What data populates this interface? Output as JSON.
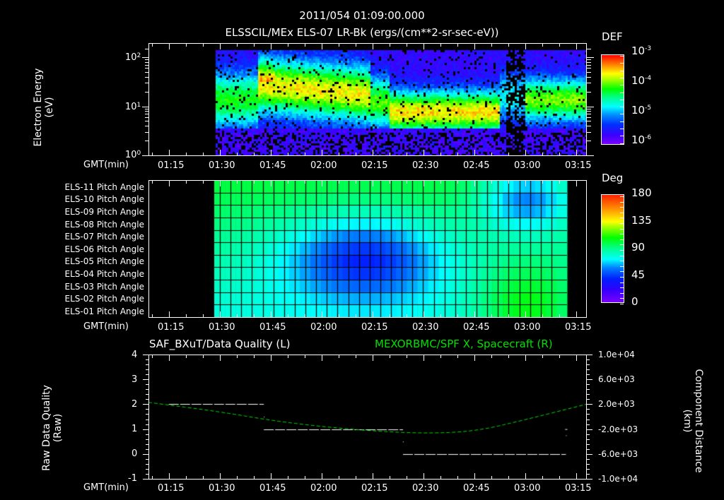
{
  "header": {
    "datetime": "2011/054 01:09:00.000",
    "subtitle": "ELSSCIL/MEx ELS-07 LR-Bk  (ergs/(cm**2-sr-sec-eV))"
  },
  "time_axis": {
    "label": "GMT(min)",
    "ticks": [
      "01:15",
      "01:30",
      "01:45",
      "02:00",
      "02:15",
      "02:30",
      "02:45",
      "03:00",
      "03:15"
    ]
  },
  "panel1": {
    "ylabel_line1": "Electron Energy",
    "ylabel_line2": "(eV)",
    "yticks": [
      {
        "base": "10",
        "exp": "2"
      },
      {
        "base": "10",
        "exp": "1"
      },
      {
        "base": "10",
        "exp": "0"
      }
    ],
    "colorbar": {
      "title": "DEF",
      "ticks": [
        {
          "base": "10",
          "exp": "-3"
        },
        {
          "base": "10",
          "exp": "-4"
        },
        {
          "base": "10",
          "exp": "-5"
        },
        {
          "base": "10",
          "exp": "-6"
        }
      ]
    }
  },
  "panel2": {
    "row_labels": [
      "ELS-11 Pitch Angle",
      "ELS-10 Pitch Angle",
      "ELS-09 Pitch Angle",
      "ELS-08 Pitch Angle",
      "ELS-07 Pitch Angle",
      "ELS-06 Pitch Angle",
      "ELS-05 Pitch Angle",
      "ELS-04 Pitch Angle",
      "ELS-03 Pitch Angle",
      "ELS-02 Pitch Angle",
      "ELS-01 Pitch Angle"
    ],
    "colorbar": {
      "title": "Deg",
      "ticks": [
        "180",
        "135",
        "90",
        "45",
        "0"
      ]
    }
  },
  "panel3": {
    "title_left": "SAF_BXuT/Data Quality (L)",
    "title_right": "MEXORBMC/SPF X, Spacecraft (R)",
    "title_right_color": "#00e000",
    "ylabel_left_line1": "Raw Data Quality",
    "ylabel_left_line2": "(Raw)",
    "yticks_left": [
      "4",
      "3",
      "2",
      "1",
      "0",
      "-1"
    ],
    "ylabel_right_line1": "Component Distance",
    "ylabel_right_line2": "(km)",
    "yticks_right": [
      "1.0e+04",
      "6.0e+03",
      "2.0e+03",
      "-2.0e+03",
      "-6.0e+03",
      "-1.0e+04"
    ]
  },
  "chart_data": [
    {
      "type": "heatmap",
      "title": "ELSSCIL/MEx ELS-07 LR-Bk (ergs/(cm**2-sr-sec-eV))",
      "xlabel": "GMT(min)",
      "ylabel": "Electron Energy (eV)",
      "yscale": "log",
      "ylim": [
        1,
        180
      ],
      "xlim": [
        "01:09",
        "03:18"
      ],
      "data_start": "01:29",
      "colorbar": {
        "label": "DEF",
        "scale": "log",
        "range": [
          1e-06,
          0.001
        ]
      },
      "features": [
        {
          "time": [
            "01:29",
            "01:41"
          ],
          "peak_energy_eV": 15,
          "level": "1e-5"
        },
        {
          "time": [
            "01:41",
            "02:13"
          ],
          "peak_energy_eV": 40,
          "level": "1e-4"
        },
        {
          "time": [
            "02:20",
            "02:52"
          ],
          "peak_energy_eV": 8,
          "level": "1e-4"
        },
        {
          "time": [
            "02:57",
            "03:03"
          ],
          "level": "data gaps/ low"
        },
        {
          "time": [
            "03:07",
            "03:18"
          ],
          "peak_energy_eV": 15,
          "level": "5e-5"
        }
      ]
    },
    {
      "type": "heatmap",
      "title": "Pitch Angle",
      "xlabel": "GMT(min)",
      "categories": [
        "ELS-11",
        "ELS-10",
        "ELS-09",
        "ELS-08",
        "ELS-07",
        "ELS-06",
        "ELS-05",
        "ELS-04",
        "ELS-03",
        "ELS-02",
        "ELS-01"
      ],
      "colorbar": {
        "label": "Deg",
        "range": [
          0,
          180
        ]
      },
      "xlim": [
        "01:09",
        "03:18"
      ],
      "data_range": [
        "01:29",
        "03:13"
      ],
      "n_time_bins": 33
    },
    {
      "type": "line",
      "title": "SAF_BXuT/Data Quality (L) ; MEXORBMC/SPF X, Spacecraft (R)",
      "xlabel": "GMT(min)",
      "ylabel": "Raw Data Quality (Raw)",
      "ylabel_right": "Component Distance (km)",
      "ylim": [
        -1,
        4
      ],
      "ylim_right": [
        -10000,
        10000
      ],
      "series": [
        {
          "name": "Data Quality",
          "axis": "left",
          "color": "#ffffff",
          "x": [
            "01:15",
            "01:43",
            "01:43",
            "02:24",
            "02:24",
            "03:12"
          ],
          "values": [
            2,
            2,
            1,
            1,
            0,
            0
          ]
        },
        {
          "name": "SPF X Spacecraft",
          "axis": "right",
          "color": "#00e000",
          "x": [
            "01:09",
            "01:30",
            "01:45",
            "02:00",
            "02:15",
            "02:30",
            "02:45",
            "03:00",
            "03:18"
          ],
          "values": [
            2300,
            800,
            -600,
            -1600,
            -2300,
            -2700,
            -2400,
            -500,
            2000
          ]
        }
      ]
    }
  ]
}
